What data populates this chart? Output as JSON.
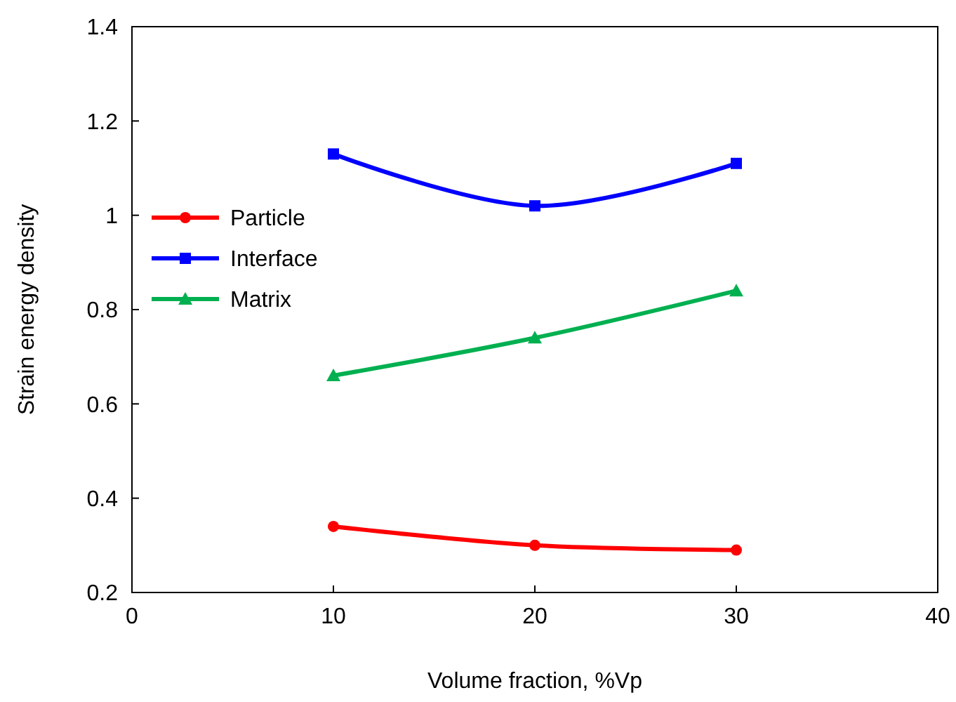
{
  "chart_data": {
    "type": "line",
    "xlabel": "Volume fraction, %Vp",
    "ylabel": "Strain energy density",
    "x": [
      10,
      20,
      30
    ],
    "series": [
      {
        "name": "Particle",
        "color": "#ff0000",
        "marker": "circle",
        "values": [
          0.34,
          0.3,
          0.29
        ]
      },
      {
        "name": "Interface",
        "color": "#0000ff",
        "marker": "square",
        "values": [
          1.13,
          1.02,
          1.11
        ]
      },
      {
        "name": "Matrix",
        "color": "#00b050",
        "marker": "triangle",
        "values": [
          0.66,
          0.74,
          0.84
        ]
      }
    ],
    "xlim": [
      0,
      40
    ],
    "xticks": [
      0,
      10,
      20,
      30,
      40
    ],
    "ylim": [
      0.2,
      1.4
    ],
    "yticks": [
      0.2,
      0.4,
      0.6,
      0.8,
      1,
      1.2,
      1.4
    ],
    "legend": "left",
    "grid": false
  }
}
